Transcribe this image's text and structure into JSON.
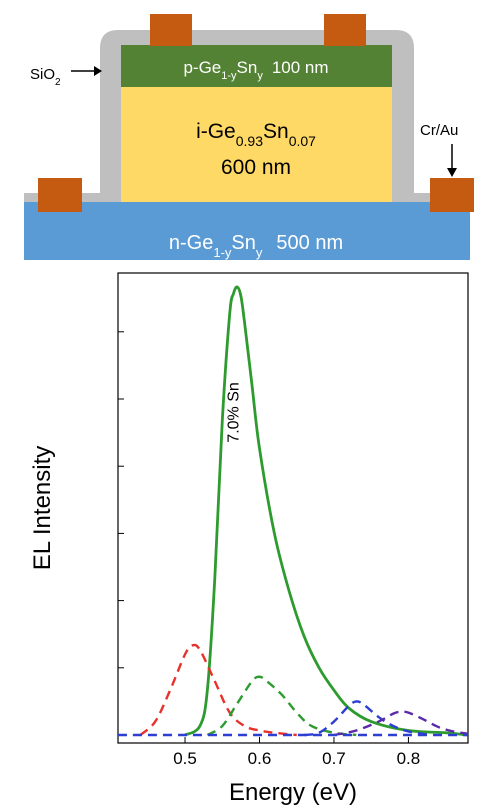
{
  "device": {
    "label_oxide": "SiO",
    "label_oxide_sub": "2",
    "label_contact": "Cr/Au",
    "p_layer": {
      "prefix": "p-Ge",
      "sub1": "1-y",
      "mid": "Sn",
      "sub2": "y",
      "thickness": "100 nm"
    },
    "i_layer": {
      "prefix": "i-Ge",
      "sub1": "0.93",
      "mid": "Sn",
      "sub2": "0.07",
      "thickness": "600 nm"
    },
    "n_layer": {
      "prefix": "n-Ge",
      "sub1": "1-y",
      "mid": "Sn",
      "sub2": "y",
      "thickness": "500 nm"
    },
    "colors": {
      "substrate": "#5b9bd5",
      "intrinsic": "#ffd966",
      "p_layer": "#548235",
      "oxide": "#bfbfbf",
      "contact": "#c55a11"
    }
  },
  "chart_data": {
    "type": "line",
    "xlabel": "Energy (eV)",
    "ylabel": "EL Intensity",
    "xlim": [
      0.41,
      0.88
    ],
    "ylim": [
      0,
      1.0
    ],
    "xticks": [
      0.5,
      0.6,
      0.7,
      0.8
    ],
    "xtick_labels": [
      "0.5",
      "0.6",
      "0.7",
      "0.8"
    ],
    "yticks": [
      0.15,
      0.3,
      0.45,
      0.6,
      0.75,
      0.9
    ],
    "annotation": {
      "text": "7.0% Sn",
      "x": 0.572,
      "y": 0.72
    },
    "series": [
      {
        "color": "#2e9b2e",
        "dash": false,
        "x": [
          0.5,
          0.52,
          0.53,
          0.54,
          0.55,
          0.56,
          0.565,
          0.57,
          0.575,
          0.58,
          0.59,
          0.6,
          0.62,
          0.64,
          0.66,
          0.68,
          0.7,
          0.72,
          0.75,
          0.8,
          0.85,
          0.88
        ],
        "y": [
          0.0,
          0.02,
          0.1,
          0.35,
          0.7,
          0.94,
          0.985,
          1.0,
          0.98,
          0.92,
          0.78,
          0.64,
          0.45,
          0.32,
          0.22,
          0.15,
          0.1,
          0.06,
          0.03,
          0.01,
          0.005,
          0.0
        ]
      },
      {
        "color": "#e8302c",
        "dash": true,
        "x": [
          0.44,
          0.46,
          0.48,
          0.5,
          0.51,
          0.52,
          0.54,
          0.56,
          0.58,
          0.6,
          0.62,
          0.65
        ],
        "y": [
          0.0,
          0.03,
          0.1,
          0.18,
          0.2,
          0.19,
          0.12,
          0.05,
          0.02,
          0.01,
          0.005,
          0.0
        ]
      },
      {
        "color": "#2e9b2e",
        "dash": true,
        "x": [
          0.53,
          0.55,
          0.57,
          0.59,
          0.6,
          0.61,
          0.63,
          0.65,
          0.67,
          0.7,
          0.73
        ],
        "y": [
          0.0,
          0.02,
          0.07,
          0.12,
          0.13,
          0.12,
          0.09,
          0.05,
          0.02,
          0.005,
          0.0
        ]
      },
      {
        "color": "#2c3fd1",
        "dash": true,
        "x": [
          0.66,
          0.68,
          0.7,
          0.72,
          0.73,
          0.74,
          0.76,
          0.78,
          0.8,
          0.83
        ],
        "y": [
          0.0,
          0.005,
          0.03,
          0.065,
          0.075,
          0.068,
          0.04,
          0.02,
          0.008,
          0.0
        ]
      },
      {
        "color": "#5b2aa8",
        "dash": true,
        "x": [
          0.7,
          0.73,
          0.76,
          0.78,
          0.79,
          0.8,
          0.82,
          0.84,
          0.86,
          0.88
        ],
        "y": [
          0.0,
          0.01,
          0.03,
          0.048,
          0.052,
          0.05,
          0.035,
          0.018,
          0.008,
          0.003
        ]
      },
      {
        "color": "#2c3fd1",
        "dash": true,
        "x": [
          0.41,
          0.5,
          0.6,
          0.7,
          0.8,
          0.88
        ],
        "y": [
          0.0,
          0.0,
          0.0,
          0.0,
          0.0,
          0.0
        ]
      }
    ]
  }
}
